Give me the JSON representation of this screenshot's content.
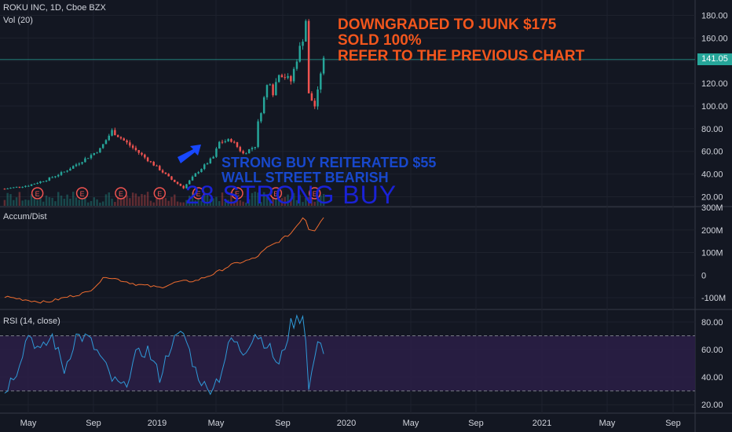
{
  "header": {
    "symbol_line": "ROKU INC, 1D, Cboe BZX",
    "volume_label": "Vol (20)"
  },
  "price_tag": "141.05",
  "annotations": {
    "orange": [
      "DOWNGRADED TO JUNK $175",
      "SOLD 100%",
      "REFER TO THE PREVIOUS CHART"
    ],
    "blue": [
      "STRONG BUY REITERATED $55",
      "WALL STREET BEARISH"
    ],
    "ghost": "28 STRONG BUY"
  },
  "earnings_marker": "E",
  "colors": {
    "background": "#131722",
    "up": "#26a69a",
    "down": "#ef5350",
    "accum_line": "#ef6c2f",
    "rsi_line": "#2f9ad8",
    "rsi_band": "#2a1e45",
    "annotation_orange": "#f2561d",
    "annotation_blue": "#1848cc",
    "arrow": "#1848ff"
  },
  "chart_data": [
    {
      "type": "candlestick",
      "title": "ROKU INC, 1D, Cboe BZX",
      "ylim": [
        12,
        188
      ],
      "yticks": [
        20,
        40,
        60,
        80,
        100,
        120,
        140,
        160,
        180
      ],
      "ytick_labels": [
        "20.00",
        "40.00",
        "60.00",
        "80.00",
        "100.00",
        "120.00",
        "140.00",
        "160.00",
        "180.00"
      ],
      "xticks": [
        "May",
        "Sep",
        "2019",
        "May",
        "Sep",
        "2020",
        "May",
        "Sep",
        "2021",
        "May",
        "Sep"
      ],
      "close_anchors": {
        "t": [
          0,
          8,
          14,
          20,
          28,
          32,
          36,
          44,
          52,
          56,
          60,
          64,
          70,
          72,
          76,
          80,
          84,
          85,
          86,
          88,
          89,
          90,
          92,
          96,
          98,
          100,
          101,
          102,
          104,
          105,
          106,
          107
        ],
        "price": [
          27,
          30,
          35,
          42,
          55,
          62,
          78,
          61,
          44,
          35,
          28,
          40,
          55,
          68,
          70,
          58,
          65,
          85,
          96,
          118,
          122,
          112,
          130,
          122,
          142,
          160,
          176,
          110,
          100,
          112,
          130,
          140
        ]
      },
      "last_price": 141.05,
      "earnings_dates_index": [
        11,
        26,
        39,
        52,
        65,
        78,
        91,
        104
      ],
      "volume_label": "Vol (20)"
    },
    {
      "type": "line",
      "title": "Accum/Dist",
      "ylim": [
        -145,
        300
      ],
      "yticks": [
        300,
        200,
        100,
        0,
        -100
      ],
      "ytick_labels": [
        "300M",
        "200M",
        "100M",
        "0",
        "-100M"
      ],
      "anchors": {
        "t": [
          0,
          10,
          14,
          20,
          28,
          34,
          44,
          52,
          58,
          64,
          70,
          76,
          84,
          88,
          92,
          96,
          100,
          101,
          102,
          104,
          106,
          107
        ],
        "value": [
          -95,
          -115,
          -120,
          -100,
          -75,
          -5,
          -40,
          -55,
          -30,
          -25,
          5,
          45,
          75,
          120,
          150,
          185,
          255,
          245,
          205,
          200,
          240,
          255
        ]
      }
    },
    {
      "type": "line",
      "title": "RSI (14, close)",
      "ylim": [
        15,
        88
      ],
      "yticks": [
        80,
        60,
        40,
        20
      ],
      "ytick_labels": [
        "80.00",
        "60.00",
        "40.00",
        "20.00"
      ],
      "band": [
        30,
        70
      ],
      "anchors": {
        "t": [
          0,
          4,
          8,
          12,
          16,
          20,
          24,
          28,
          32,
          36,
          40,
          44,
          48,
          52,
          56,
          60,
          64,
          68,
          72,
          76,
          80,
          84,
          88,
          92,
          96,
          100,
          101,
          102,
          104,
          106,
          107
        ],
        "value": [
          30,
          45,
          72,
          58,
          70,
          45,
          70,
          68,
          55,
          38,
          32,
          55,
          60,
          40,
          65,
          72,
          45,
          30,
          40,
          68,
          58,
          72,
          64,
          48,
          78,
          85,
          70,
          30,
          55,
          68,
          60
        ]
      }
    }
  ]
}
